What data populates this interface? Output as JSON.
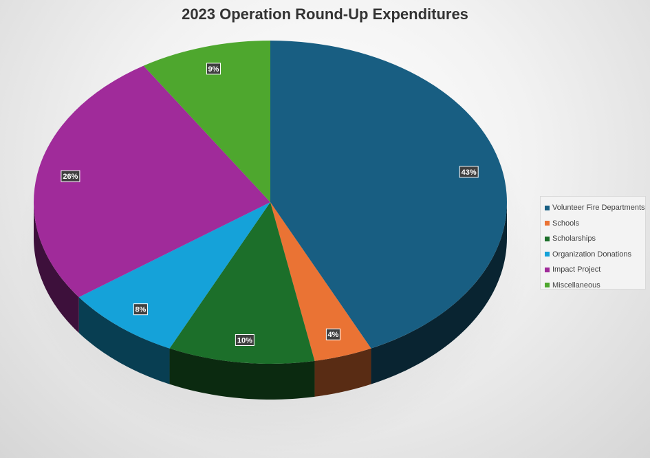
{
  "chart_data": {
    "type": "pie",
    "title": "2023 Operation Round-Up Expenditures",
    "slices": [
      {
        "name": "Volunteer Fire Departments",
        "value": 43,
        "label": "43%",
        "color": "#185e82"
      },
      {
        "name": "Schools",
        "value": 4,
        "label": "4%",
        "color": "#ea7334"
      },
      {
        "name": "Scholarships",
        "value": 10,
        "label": "10%",
        "color": "#1c6f2a"
      },
      {
        "name": "Organization Donations",
        "value": 8,
        "label": "8%",
        "color": "#15a2d9"
      },
      {
        "name": "Impact Project",
        "value": 26,
        "label": "26%",
        "color": "#a02b9a"
      },
      {
        "name": "Miscellaneous",
        "value": 9,
        "label": "9%",
        "color": "#4ea72e"
      }
    ],
    "legend_position": "right",
    "style": "3d-pie"
  }
}
